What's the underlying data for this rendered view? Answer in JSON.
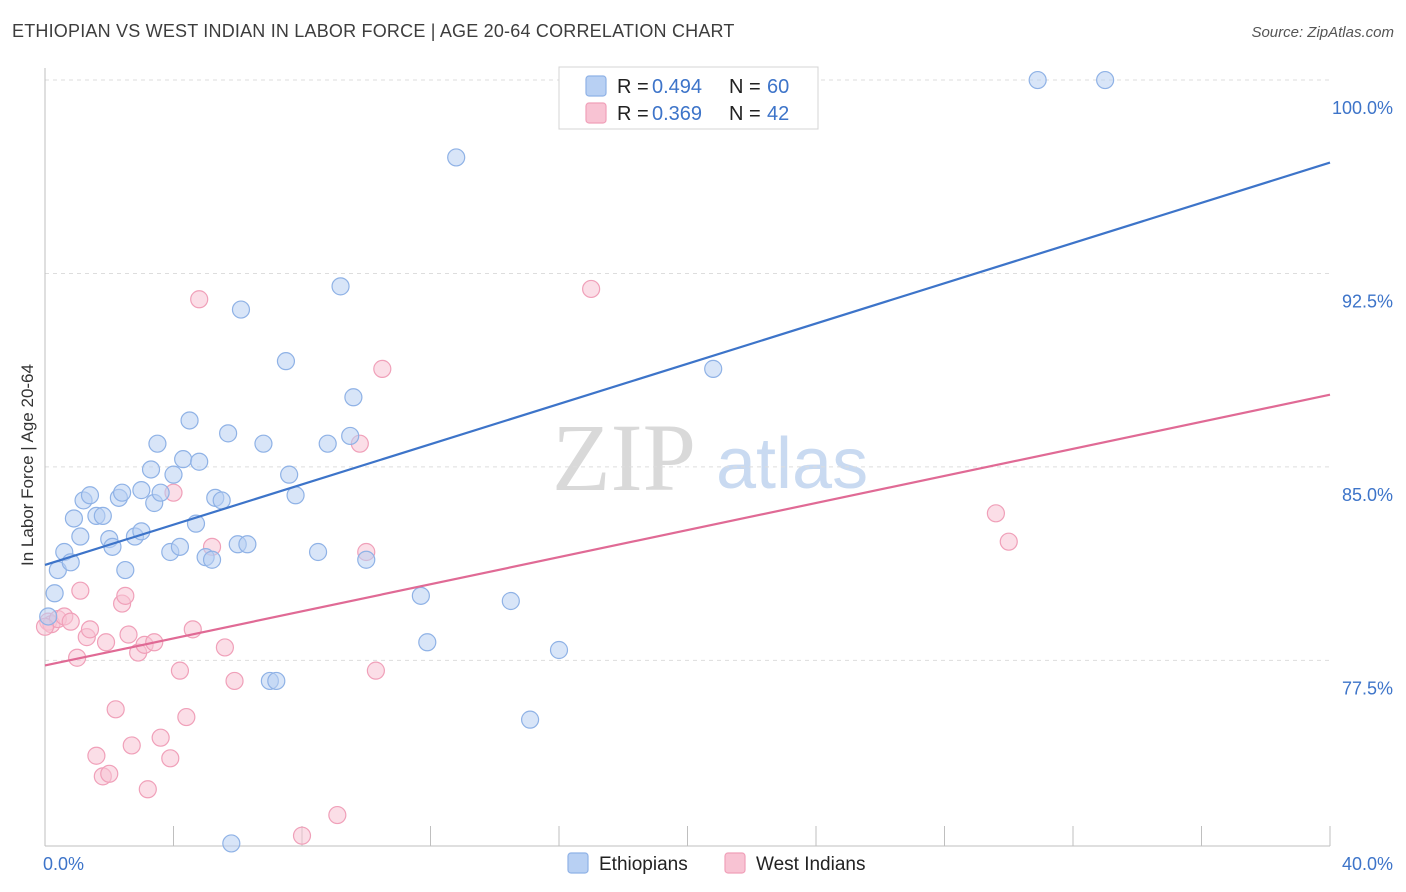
{
  "title": "ETHIOPIAN VS WEST INDIAN IN LABOR FORCE | AGE 20-64 CORRELATION CHART",
  "source": "Source: ZipAtlas.com",
  "watermark": {
    "zip": "ZIP",
    "atlas": "atlas"
  },
  "colors": {
    "blue": "#3d74c9",
    "blue_fill": "#b8d0f3",
    "blue_stroke": "#8fb2e6",
    "pink": "#e06a95",
    "pink_fill": "#f8c3d3",
    "pink_stroke": "#f0a0b9",
    "grid": "#dddddd"
  },
  "legend": {
    "series": [
      {
        "r_label": "R =",
        "r_value": "0.494",
        "n_label": "N =",
        "n_value": "60"
      },
      {
        "r_label": "R =",
        "r_value": "0.369",
        "n_label": "N =",
        "n_value": "42"
      }
    ]
  },
  "chart_data": {
    "type": "scatter",
    "title": "ETHIOPIAN VS WEST INDIAN IN LABOR FORCE | AGE 20-64 CORRELATION CHART",
    "xlabel": "",
    "ylabel": "In Labor Force | Age 20-64",
    "xlim": [
      0,
      40
    ],
    "ylim": [
      70.3,
      100.7
    ],
    "x_tick_labels": [
      {
        "value": 0,
        "label": "0.0%"
      },
      {
        "value": 40,
        "label": "40.0%"
      }
    ],
    "x_minor_ticks": [
      4,
      8,
      12,
      16,
      20,
      24,
      28,
      32,
      36,
      40
    ],
    "y_ticks": [
      {
        "value": 77.5,
        "label": "77.5%"
      },
      {
        "value": 85.0,
        "label": "85.0%"
      },
      {
        "value": 92.5,
        "label": "92.5%"
      },
      {
        "value": 100.0,
        "label": "100.0%"
      }
    ],
    "series": [
      {
        "name": "Ethiopians",
        "trend": {
          "x": [
            0,
            40
          ],
          "y": [
            81.2,
            96.8
          ]
        },
        "points": [
          [
            0.3,
            80.1
          ],
          [
            0.4,
            81.0
          ],
          [
            0.6,
            81.7
          ],
          [
            0.8,
            81.3
          ],
          [
            0.9,
            83.0
          ],
          [
            1.1,
            82.3
          ],
          [
            1.2,
            83.7
          ],
          [
            1.4,
            83.9
          ],
          [
            1.6,
            83.1
          ],
          [
            1.8,
            83.1
          ],
          [
            2.0,
            82.2
          ],
          [
            2.1,
            81.9
          ],
          [
            2.3,
            83.8
          ],
          [
            2.4,
            84.0
          ],
          [
            2.5,
            81.0
          ],
          [
            2.8,
            82.3
          ],
          [
            3.0,
            82.5
          ],
          [
            3.0,
            84.1
          ],
          [
            3.3,
            84.9
          ],
          [
            3.4,
            83.6
          ],
          [
            3.5,
            85.9
          ],
          [
            3.6,
            84.0
          ],
          [
            3.9,
            81.7
          ],
          [
            4.0,
            84.7
          ],
          [
            4.2,
            81.9
          ],
          [
            4.3,
            85.3
          ],
          [
            4.5,
            86.8
          ],
          [
            4.7,
            82.8
          ],
          [
            4.8,
            85.2
          ],
          [
            5.0,
            81.5
          ],
          [
            5.2,
            81.4
          ],
          [
            5.3,
            83.8
          ],
          [
            5.5,
            83.7
          ],
          [
            5.7,
            86.3
          ],
          [
            6.0,
            82.0
          ],
          [
            6.1,
            91.1
          ],
          [
            6.3,
            82.0
          ],
          [
            6.8,
            85.9
          ],
          [
            7.0,
            76.7
          ],
          [
            7.2,
            76.7
          ],
          [
            7.5,
            89.1
          ],
          [
            7.6,
            84.7
          ],
          [
            7.8,
            83.9
          ],
          [
            8.5,
            81.7
          ],
          [
            8.8,
            85.9
          ],
          [
            9.2,
            92.0
          ],
          [
            9.5,
            86.2
          ],
          [
            9.6,
            87.7
          ],
          [
            10.0,
            81.4
          ],
          [
            11.7,
            80.0
          ],
          [
            11.9,
            78.2
          ],
          [
            12.8,
            97.0
          ],
          [
            14.5,
            79.8
          ],
          [
            15.1,
            75.2
          ],
          [
            16.0,
            77.9
          ],
          [
            20.8,
            88.8
          ],
          [
            30.9,
            100.0
          ],
          [
            33.0,
            100.0
          ],
          [
            0.1,
            79.2
          ],
          [
            5.8,
            70.4
          ]
        ]
      },
      {
        "name": "West Indians",
        "trend": {
          "x": [
            0,
            40
          ],
          "y": [
            77.3,
            87.8
          ]
        },
        "points": [
          [
            0.1,
            79.0
          ],
          [
            0.2,
            78.9
          ],
          [
            0.4,
            79.1
          ],
          [
            0.6,
            79.2
          ],
          [
            0.8,
            79.0
          ],
          [
            1.0,
            77.6
          ],
          [
            1.1,
            80.2
          ],
          [
            1.3,
            78.4
          ],
          [
            1.4,
            78.7
          ],
          [
            1.6,
            73.8
          ],
          [
            1.8,
            73.0
          ],
          [
            1.9,
            78.2
          ],
          [
            2.0,
            73.1
          ],
          [
            2.2,
            75.6
          ],
          [
            2.4,
            79.7
          ],
          [
            2.5,
            80.0
          ],
          [
            2.6,
            78.5
          ],
          [
            2.7,
            74.2
          ],
          [
            2.9,
            77.8
          ],
          [
            3.1,
            78.1
          ],
          [
            3.2,
            72.5
          ],
          [
            3.4,
            78.2
          ],
          [
            3.6,
            74.5
          ],
          [
            3.9,
            73.7
          ],
          [
            4.0,
            84.0
          ],
          [
            4.2,
            77.1
          ],
          [
            4.4,
            75.3
          ],
          [
            4.6,
            78.7
          ],
          [
            4.8,
            91.5
          ],
          [
            5.2,
            81.9
          ],
          [
            5.6,
            78.0
          ],
          [
            5.9,
            76.7
          ],
          [
            8.0,
            70.7
          ],
          [
            9.1,
            71.5
          ],
          [
            9.8,
            85.9
          ],
          [
            10.0,
            81.7
          ],
          [
            10.3,
            77.1
          ],
          [
            10.5,
            88.8
          ],
          [
            17.0,
            91.9
          ],
          [
            29.6,
            83.2
          ],
          [
            30.0,
            82.1
          ],
          [
            0.0,
            78.8
          ]
        ]
      }
    ],
    "legend_position": "top-center",
    "bottom_legend": [
      "Ethiopians",
      "West Indians"
    ]
  }
}
